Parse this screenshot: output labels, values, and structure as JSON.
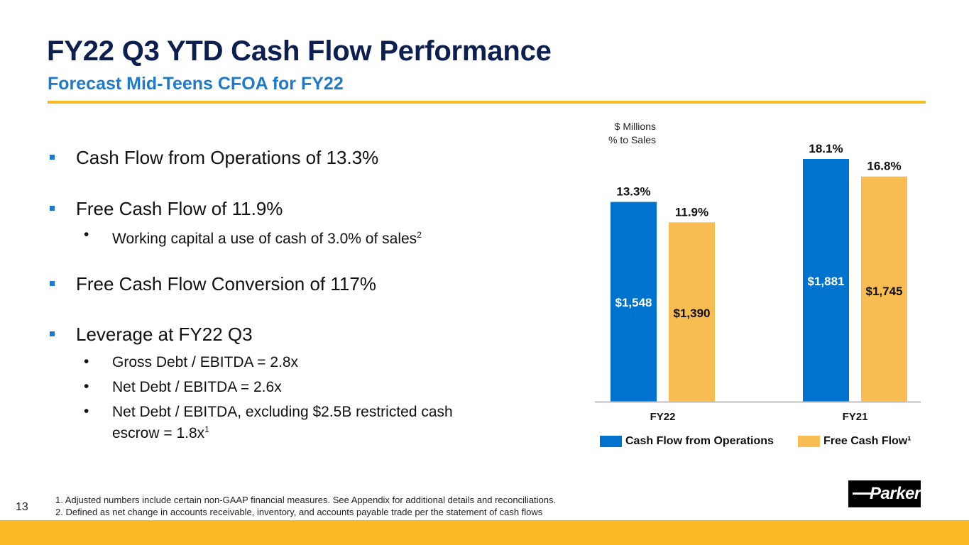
{
  "header": {
    "title": "FY22 Q3 YTD Cash Flow Performance",
    "subtitle": "Forecast Mid-Teens CFOA for FY22"
  },
  "bullets": [
    {
      "text": "Cash Flow from Operations of 13.3%",
      "sub": []
    },
    {
      "text": "Free Cash Flow of 11.9%",
      "sub": [
        {
          "text": "Working capital a use of cash of 3.0% of sales",
          "sup": "2"
        }
      ]
    },
    {
      "text": "Free Cash Flow Conversion of 117%",
      "sub": []
    },
    {
      "text": "Leverage at FY22 Q3",
      "sub": [
        {
          "text": "Gross Debt / EBITDA = 2.8x",
          "sup": ""
        },
        {
          "text": "Net Debt / EBITDA = 2.6x",
          "sup": ""
        },
        {
          "text": "Net Debt / EBITDA, excluding $2.5B restricted cash",
          "line2": "escrow = 1.8x",
          "sup": "1"
        }
      ]
    }
  ],
  "footnotes": [
    "1. Adjusted numbers include certain non-GAAP financial measures. See Appendix for additional details and reconciliations.",
    "2. Defined as net change in accounts receivable, inventory, and accounts payable trade per the statement of cash flows"
  ],
  "page_number": "13",
  "logo": {
    "text": "Parker"
  },
  "colors": {
    "title": "#0d1f4f",
    "accent_blue": "#1f7acb",
    "cfo": "#0073cf",
    "fcf": "#f8bd52",
    "gold": "#fbb823"
  },
  "chart_data": {
    "type": "bar",
    "title": "",
    "unit_labels": [
      "$ Millions",
      "% to Sales"
    ],
    "categories": [
      "FY22",
      "FY21"
    ],
    "series": [
      {
        "name": "Cash Flow from Operations",
        "values": [
          1548,
          1881
        ],
        "value_labels": [
          "$1,548",
          "$1,881"
        ],
        "pct_labels": [
          "13.3%",
          "18.1%"
        ],
        "color": "#0073cf",
        "label_color": "#ffffff"
      },
      {
        "name": "Free Cash Flow",
        "legend_sup": "¹",
        "values": [
          1390,
          1745
        ],
        "value_labels": [
          "$1,390",
          "$1,745"
        ],
        "pct_labels": [
          "11.9%",
          "16.8%"
        ],
        "color": "#f8bd52",
        "label_color": "#111111"
      }
    ],
    "ylim": [
      0,
      1900
    ],
    "grid": false,
    "legend": "bottom"
  }
}
